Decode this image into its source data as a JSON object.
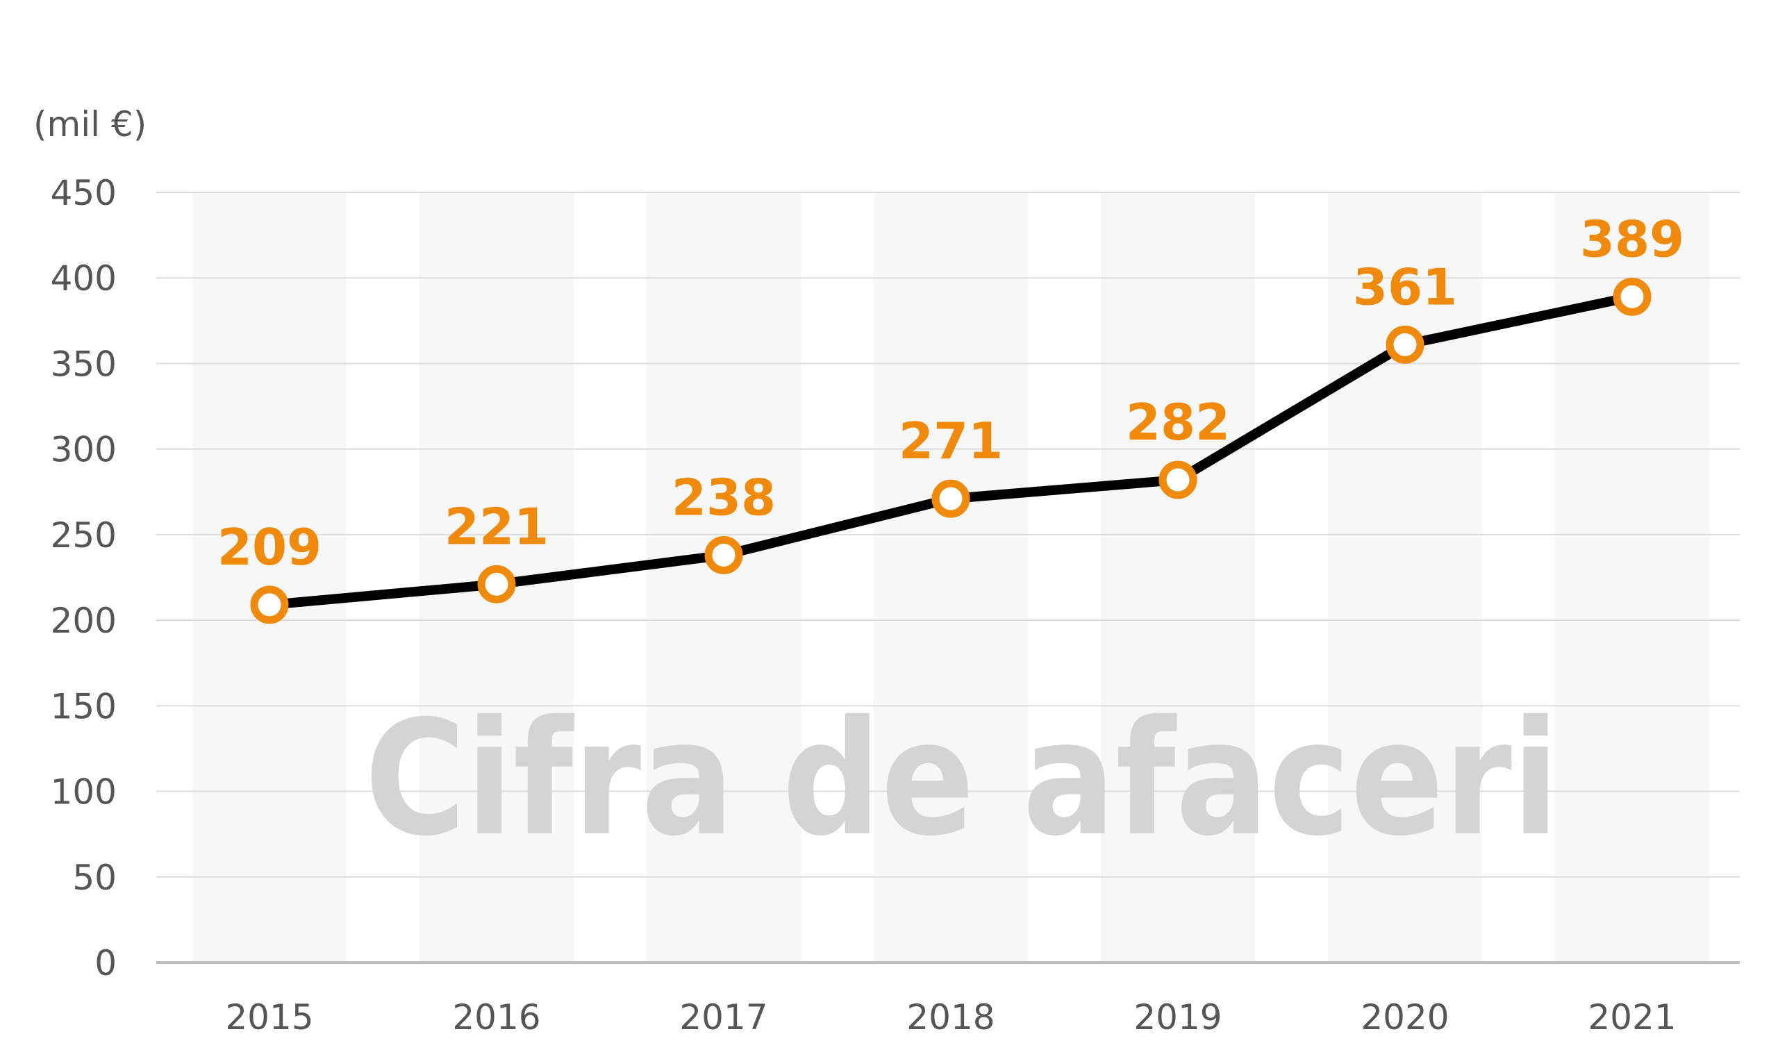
{
  "chart_data": {
    "type": "line",
    "title": "Cifra de afaceri",
    "unit_label": "(mil €)",
    "categories": [
      "2015",
      "2016",
      "2017",
      "2018",
      "2019",
      "2020",
      "2021"
    ],
    "series": [
      {
        "values": [
          209,
          221,
          238,
          271,
          282,
          361,
          389
        ]
      }
    ],
    "data_labels": [
      "209",
      "221",
      "238",
      "271",
      "282",
      "361",
      "389"
    ],
    "y_ticks": [
      "0",
      "50",
      "100",
      "150",
      "200",
      "250",
      "300",
      "350",
      "400",
      "450"
    ],
    "ylim": [
      0,
      450
    ],
    "grid": true,
    "alternating_column_bands": true,
    "colors": {
      "line": "#000000",
      "marker_stroke": "#f08a0c",
      "marker_fill": "#ffffff",
      "data_label": "#f08a0c",
      "band": "#f7f7f7",
      "gridline": "#dcdcdc",
      "axis": "#bfbfbf",
      "watermark": "#d4d4d4"
    }
  }
}
